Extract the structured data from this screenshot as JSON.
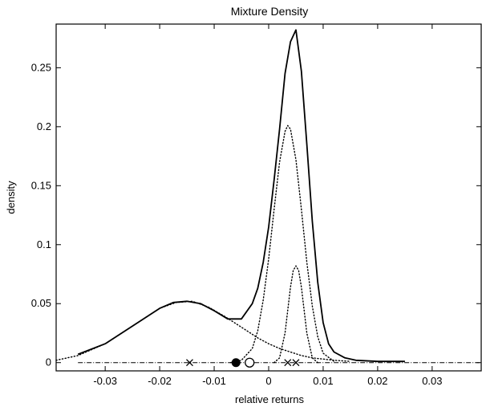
{
  "chart_data": {
    "type": "line",
    "title": "Mixture Density",
    "xlabel": "relative returns",
    "ylabel": "density",
    "xlim": [
      -0.039,
      0.039
    ],
    "ylim": [
      -0.007,
      0.287
    ],
    "xticks": [
      -0.03,
      -0.02,
      -0.01,
      0,
      0.01,
      0.02,
      0.03
    ],
    "xtick_labels": [
      "-0.03",
      "-0.02",
      "-0.01",
      "0",
      "0.01",
      "0.02",
      "0.03"
    ],
    "yticks": [
      0,
      0.05,
      0.1,
      0.15,
      0.2,
      0.25
    ],
    "ytick_labels": [
      "0",
      "0.05",
      "0.1",
      "0.15",
      "0.2",
      "0.25"
    ],
    "grid": false,
    "legend": "none",
    "colors": {
      "line": "#000000"
    },
    "mixture_curve": {
      "style": "solid",
      "x": [
        -0.035,
        -0.03,
        -0.025,
        -0.02,
        -0.0175,
        -0.015,
        -0.0125,
        -0.01,
        -0.0075,
        -0.005,
        -0.003,
        -0.002,
        -0.001,
        0.0,
        0.001,
        0.002,
        0.003,
        0.004,
        0.005,
        0.006,
        0.007,
        0.008,
        0.009,
        0.01,
        0.011,
        0.012,
        0.014,
        0.016,
        0.02,
        0.025
      ],
      "y": [
        0.007,
        0.016,
        0.031,
        0.046,
        0.051,
        0.052,
        0.05,
        0.044,
        0.037,
        0.037,
        0.05,
        0.063,
        0.085,
        0.115,
        0.155,
        0.198,
        0.245,
        0.272,
        0.282,
        0.247,
        0.185,
        0.12,
        0.068,
        0.034,
        0.016,
        0.009,
        0.004,
        0.002,
        0.001,
        0.001
      ]
    },
    "components": [
      {
        "style": "dotted",
        "x": [
          -0.039,
          -0.035,
          -0.03,
          -0.025,
          -0.02,
          -0.017,
          -0.014,
          -0.011,
          -0.008,
          -0.006,
          -0.004,
          -0.002,
          0.0,
          0.002,
          0.004,
          0.006,
          0.008,
          0.01,
          0.012,
          0.015
        ],
        "y": [
          0.002,
          0.006,
          0.016,
          0.031,
          0.046,
          0.051,
          0.052,
          0.047,
          0.039,
          0.033,
          0.027,
          0.021,
          0.016,
          0.012,
          0.009,
          0.006,
          0.004,
          0.003,
          0.002,
          0.001
        ]
      },
      {
        "style": "dotted",
        "x": [
          -0.007,
          -0.005,
          -0.003,
          -0.002,
          -0.001,
          0.0,
          0.001,
          0.002,
          0.003,
          0.0035,
          0.004,
          0.005,
          0.006,
          0.007,
          0.008,
          0.009,
          0.01,
          0.012
        ],
        "y": [
          0.0,
          0.002,
          0.012,
          0.027,
          0.053,
          0.088,
          0.13,
          0.17,
          0.196,
          0.201,
          0.198,
          0.172,
          0.13,
          0.085,
          0.048,
          0.022,
          0.008,
          0.001
        ]
      },
      {
        "style": "dotted",
        "x": [
          0.001,
          0.002,
          0.003,
          0.004,
          0.0045,
          0.005,
          0.0055,
          0.006,
          0.007,
          0.008,
          0.009
        ],
        "y": [
          0.0,
          0.004,
          0.025,
          0.064,
          0.078,
          0.082,
          0.078,
          0.064,
          0.025,
          0.004,
          0.0
        ]
      }
    ],
    "baseline": {
      "style": "dash-dot",
      "x": [
        -0.035,
        0.039
      ],
      "y": [
        0.0,
        0.0
      ]
    },
    "markers": [
      {
        "symbol": "cross",
        "x": -0.0145,
        "y": 0
      },
      {
        "symbol": "filled-circle",
        "x": -0.006,
        "y": 0
      },
      {
        "symbol": "open-circle",
        "x": -0.0035,
        "y": 0
      },
      {
        "symbol": "cross",
        "x": 0.0035,
        "y": 0
      },
      {
        "symbol": "cross",
        "x": 0.005,
        "y": 0
      }
    ]
  }
}
